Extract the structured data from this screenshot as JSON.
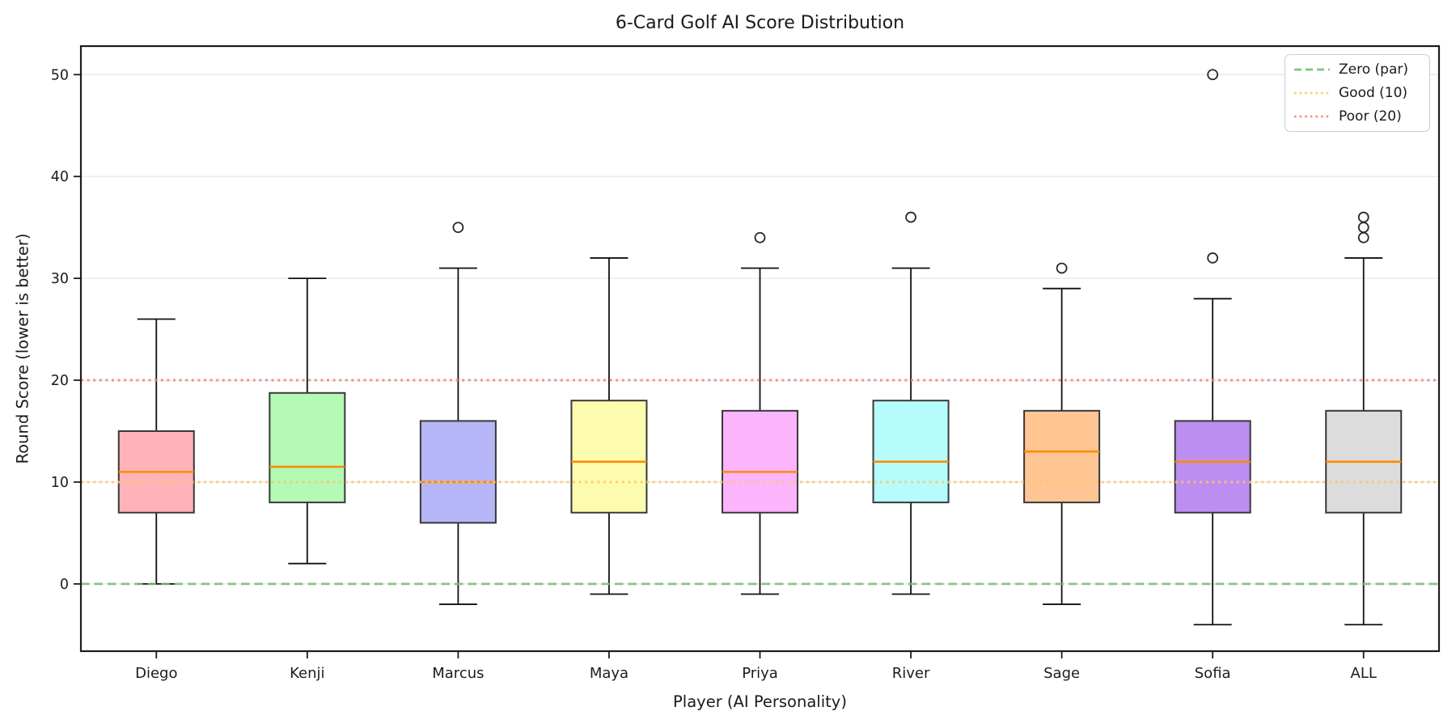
{
  "chart_data": {
    "type": "boxplot",
    "title": "6-Card Golf AI Score Distribution",
    "xlabel": "Player (AI Personality)",
    "ylabel": "Round Score (lower is better)",
    "categories": [
      "Diego",
      "Kenji",
      "Marcus",
      "Maya",
      "Priya",
      "River",
      "Sage",
      "Sofia",
      "ALL"
    ],
    "series": [
      {
        "name": "Diego",
        "whisker_low": 0,
        "q1": 7,
        "median": 11,
        "q3": 15,
        "whisker_high": 26,
        "outliers": [],
        "fill": "#ffb3b9"
      },
      {
        "name": "Kenji",
        "whisker_low": 2,
        "q1": 8,
        "median": 11.5,
        "q3": 18.75,
        "whisker_high": 30,
        "outliers": [],
        "fill": "#b4fab4"
      },
      {
        "name": "Marcus",
        "whisker_low": -2,
        "q1": 6,
        "median": 10,
        "q3": 16,
        "whisker_high": 31,
        "outliers": [
          35
        ],
        "fill": "#b5b5f7"
      },
      {
        "name": "Maya",
        "whisker_low": -1,
        "q1": 7,
        "median": 12,
        "q3": 18,
        "whisker_high": 32,
        "outliers": [],
        "fill": "#fdfcae"
      },
      {
        "name": "Priya",
        "whisker_low": -1,
        "q1": 7,
        "median": 11,
        "q3": 17,
        "whisker_high": 31,
        "outliers": [
          34
        ],
        "fill": "#fcb4fc"
      },
      {
        "name": "River",
        "whisker_low": -1,
        "q1": 8,
        "median": 12,
        "q3": 18,
        "whisker_high": 31,
        "outliers": [
          36
        ],
        "fill": "#b6fcfc"
      },
      {
        "name": "Sage",
        "whisker_low": -2,
        "q1": 8,
        "median": 13,
        "q3": 17,
        "whisker_high": 29,
        "outliers": [
          31
        ],
        "fill": "#ffc694"
      },
      {
        "name": "Sofia",
        "whisker_low": -4,
        "q1": 7,
        "median": 12,
        "q3": 16,
        "whisker_high": 28,
        "outliers": [
          32,
          50
        ],
        "fill": "#bd8ef2"
      },
      {
        "name": "ALL",
        "whisker_low": -4,
        "q1": 7,
        "median": 12,
        "q3": 17,
        "whisker_high": 32,
        "outliers": [
          34,
          35,
          36
        ],
        "fill": "#dcdcdc"
      }
    ],
    "yticks": [
      0,
      10,
      20,
      30,
      40,
      50
    ],
    "ylim": [
      -6.6,
      52.8
    ],
    "grid": true,
    "legend_position": "upper right",
    "reference_lines": [
      {
        "label": "Zero (par)",
        "value": 0,
        "style": "dashed",
        "color": "#71bf71"
      },
      {
        "label": "Good (10)",
        "value": 10,
        "style": "dotted",
        "color": "#fdc668"
      },
      {
        "label": "Poor (20)",
        "value": 20,
        "style": "dotted",
        "color": "#f97d7d"
      }
    ],
    "style": {
      "median_color": "#ff8a00",
      "box_edge_color": "#383838",
      "whisker_color": "#111111",
      "grid_color": "#e9e9e9",
      "outlier_edge_color": "#2b2b2b",
      "axis_color": "#1c1c1c"
    }
  }
}
